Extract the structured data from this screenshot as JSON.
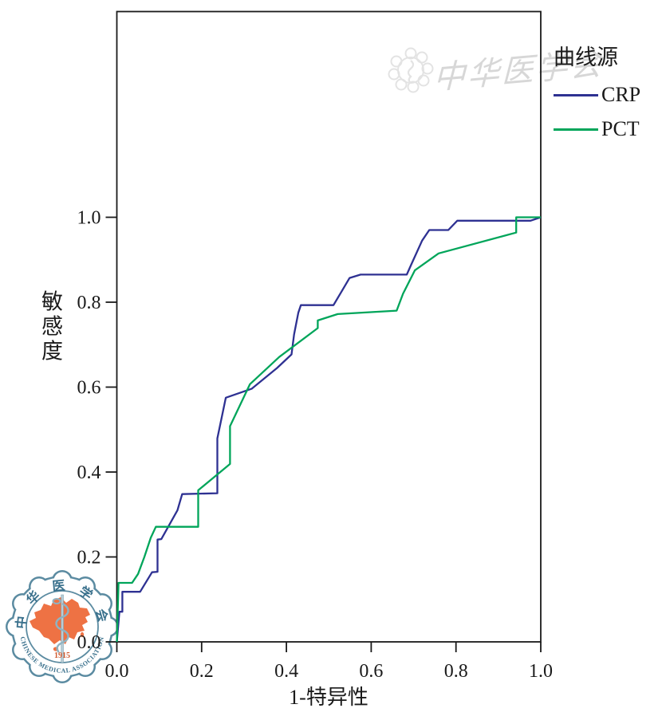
{
  "watermark_top": {
    "text": "中华医学会"
  },
  "logo": {
    "ring_text_top": "中华医学会",
    "year": "1915",
    "ring_text_bottom": "CHINESE MEDICAL ASSOCIATION"
  },
  "chart_data": {
    "type": "line",
    "subtype": "ROC curve",
    "title": "",
    "xlabel": "1-特异性",
    "ylabel": "敏感度",
    "xlim": [
      0.0,
      1.0
    ],
    "ylim": [
      0.0,
      1.0
    ],
    "grid": false,
    "x_ticks": [
      0.0,
      0.2,
      0.4,
      0.6,
      0.8,
      1.0
    ],
    "y_ticks": [
      0.0,
      0.2,
      0.4,
      0.6,
      0.8,
      1.0
    ],
    "tick_labels": [
      "0.0",
      "0.2",
      "0.4",
      "0.6",
      "0.8",
      "1.0"
    ],
    "legend_title": "曲线源",
    "legend_position": "outside-top-right",
    "frame_color": "#1a1a1a",
    "series": [
      {
        "name": "CRP",
        "color": "#2e3192",
        "points": [
          [
            0.0,
            0.0
          ],
          [
            0.006,
            0.071
          ],
          [
            0.013,
            0.071
          ],
          [
            0.013,
            0.118
          ],
          [
            0.055,
            0.118
          ],
          [
            0.083,
            0.164
          ],
          [
            0.096,
            0.165
          ],
          [
            0.096,
            0.241
          ],
          [
            0.105,
            0.242
          ],
          [
            0.143,
            0.31
          ],
          [
            0.154,
            0.348
          ],
          [
            0.237,
            0.35
          ],
          [
            0.237,
            0.479
          ],
          [
            0.257,
            0.575
          ],
          [
            0.318,
            0.596
          ],
          [
            0.378,
            0.645
          ],
          [
            0.412,
            0.677
          ],
          [
            0.418,
            0.724
          ],
          [
            0.428,
            0.775
          ],
          [
            0.434,
            0.793
          ],
          [
            0.511,
            0.793
          ],
          [
            0.53,
            0.825
          ],
          [
            0.549,
            0.857
          ],
          [
            0.575,
            0.865
          ],
          [
            0.684,
            0.865
          ],
          [
            0.695,
            0.89
          ],
          [
            0.72,
            0.945
          ],
          [
            0.737,
            0.97
          ],
          [
            0.782,
            0.97
          ],
          [
            0.803,
            0.992
          ],
          [
            0.976,
            0.992
          ],
          [
            1.0,
            1.0
          ]
        ]
      },
      {
        "name": "PCT",
        "color": "#00a55a",
        "points": [
          [
            0.0,
            0.0
          ],
          [
            0.004,
            0.139
          ],
          [
            0.036,
            0.139
          ],
          [
            0.05,
            0.16
          ],
          [
            0.065,
            0.2
          ],
          [
            0.08,
            0.245
          ],
          [
            0.092,
            0.271
          ],
          [
            0.192,
            0.271
          ],
          [
            0.192,
            0.357
          ],
          [
            0.267,
            0.419
          ],
          [
            0.267,
            0.508
          ],
          [
            0.314,
            0.607
          ],
          [
            0.383,
            0.671
          ],
          [
            0.474,
            0.739
          ],
          [
            0.474,
            0.757
          ],
          [
            0.521,
            0.772
          ],
          [
            0.66,
            0.78
          ],
          [
            0.675,
            0.82
          ],
          [
            0.703,
            0.875
          ],
          [
            0.759,
            0.915
          ],
          [
            0.942,
            0.964
          ],
          [
            0.942,
            1.0
          ],
          [
            1.0,
            1.0
          ]
        ]
      }
    ]
  }
}
